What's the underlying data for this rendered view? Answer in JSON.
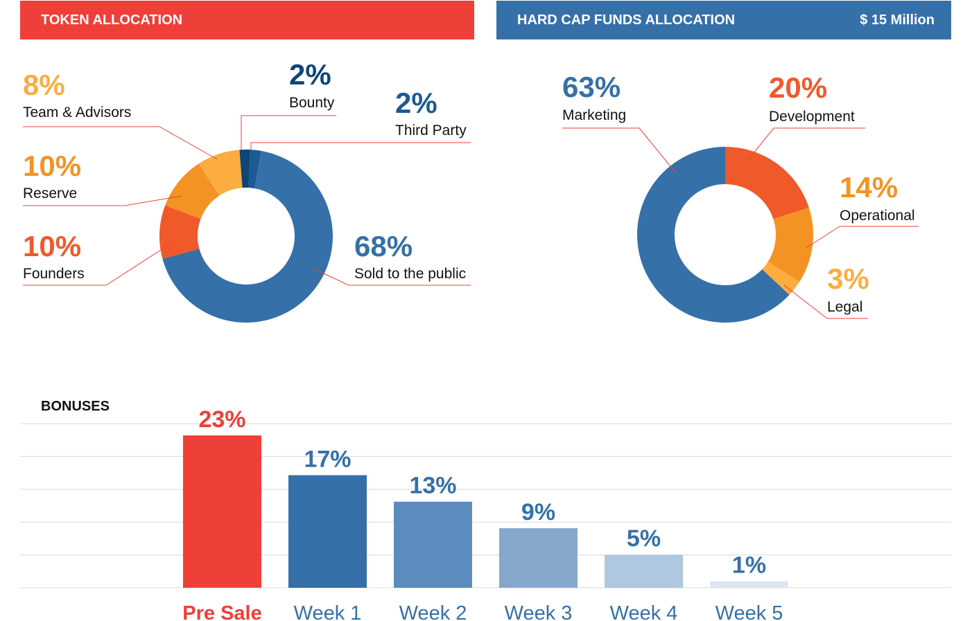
{
  "token_allocation": {
    "header": "TOKEN ALLOCATION"
  },
  "funds_allocation": {
    "header": "HARD CAP FUNDS ALLOCATION",
    "amount": "$ 15 Million"
  },
  "bonuses": {
    "title": "BONUSES"
  },
  "colors": {
    "red": "#ee3f38",
    "blue": "#3570a8",
    "navy": "#0f4577",
    "orange": "#f08a1c",
    "light_orange": "#fbad40",
    "dark_orange": "#f0592a"
  },
  "chart_data": [
    {
      "type": "pie",
      "title": "TOKEN ALLOCATION",
      "donut": true,
      "slices": [
        {
          "label": "Sold to the public",
          "value": 68,
          "display": "68%",
          "color": "#3570a8",
          "label_color": "#3570a8"
        },
        {
          "label": "Founders",
          "value": 10,
          "display": "10%",
          "color": "#f0592a",
          "label_color": "#f0592a"
        },
        {
          "label": "Reserve",
          "value": 10,
          "display": "10%",
          "color": "#f39324",
          "label_color": "#f39324"
        },
        {
          "label": "Team & Advisors",
          "value": 8,
          "display": "8%",
          "color": "#fbad40",
          "label_color": "#fbad40"
        },
        {
          "label": "Bounty",
          "value": 2,
          "display": "2%",
          "color": "#0f4577",
          "label_color": "#0f4577"
        },
        {
          "label": "Third Party",
          "value": 2,
          "display": "2%",
          "color": "#1b5a94",
          "label_color": "#1b5a94"
        }
      ]
    },
    {
      "type": "pie",
      "title": "HARD CAP FUNDS ALLOCATION",
      "donut": true,
      "slices": [
        {
          "label": "Development",
          "value": 20,
          "display": "20%",
          "color": "#f0592a",
          "label_color": "#f0592a"
        },
        {
          "label": "Operational",
          "value": 14,
          "display": "14%",
          "color": "#f39324",
          "label_color": "#f39324"
        },
        {
          "label": "Legal",
          "value": 3,
          "display": "3%",
          "color": "#fbad40",
          "label_color": "#fbad40"
        },
        {
          "label": "Marketing",
          "value": 63,
          "display": "63%",
          "color": "#3570a8",
          "label_color": "#3570a8"
        }
      ]
    },
    {
      "type": "bar",
      "title": "BONUSES",
      "categories": [
        "Pre Sale",
        "Week 1",
        "Week 2",
        "Week 3",
        "Week 4",
        "Week 5"
      ],
      "values": [
        23,
        17,
        13,
        9,
        5,
        1
      ],
      "display": [
        "23%",
        "17%",
        "13%",
        "9%",
        "5%",
        "1%"
      ],
      "bar_colors": [
        "#ee3f38",
        "#3570a8",
        "#5b8cbd",
        "#85a8cc",
        "#b0c7e0",
        "#dde7f2"
      ],
      "label_colors": [
        "#ee3f38",
        "#3570a8",
        "#3570a8",
        "#3570a8",
        "#3570a8",
        "#3570a8"
      ],
      "ylim": [
        0,
        25
      ],
      "grid": true
    }
  ]
}
